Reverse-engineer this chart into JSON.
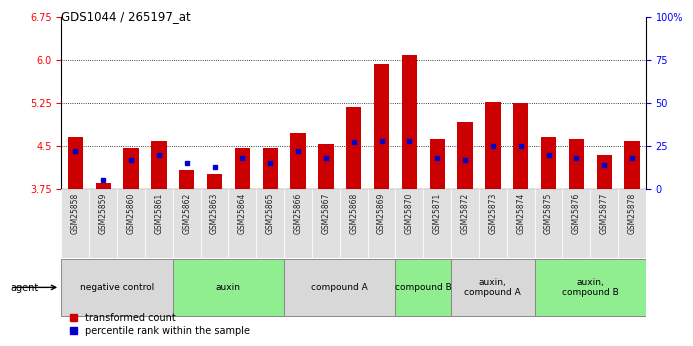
{
  "title": "GDS1044 / 265197_at",
  "samples": [
    "GSM25858",
    "GSM25859",
    "GSM25860",
    "GSM25861",
    "GSM25862",
    "GSM25863",
    "GSM25864",
    "GSM25865",
    "GSM25866",
    "GSM25867",
    "GSM25868",
    "GSM25869",
    "GSM25870",
    "GSM25871",
    "GSM25872",
    "GSM25873",
    "GSM25874",
    "GSM25875",
    "GSM25876",
    "GSM25877",
    "GSM25878"
  ],
  "transformed_counts": [
    4.65,
    3.85,
    4.47,
    4.58,
    4.08,
    4.02,
    4.47,
    4.47,
    4.73,
    4.53,
    5.18,
    5.93,
    6.08,
    4.62,
    4.92,
    5.27,
    5.25,
    4.65,
    4.62,
    4.35,
    4.58
  ],
  "percentile_ranks": [
    22,
    5,
    17,
    20,
    15,
    13,
    18,
    15,
    22,
    18,
    27,
    28,
    28,
    18,
    17,
    25,
    25,
    20,
    18,
    14,
    18
  ],
  "groups": [
    {
      "label": "negative control",
      "indices": [
        0,
        1,
        2,
        3
      ],
      "color": "#d8d8d8"
    },
    {
      "label": "auxin",
      "indices": [
        4,
        5,
        6,
        7
      ],
      "color": "#90ee90"
    },
    {
      "label": "compound A",
      "indices": [
        8,
        9,
        10,
        11
      ],
      "color": "#d8d8d8"
    },
    {
      "label": "compound B",
      "indices": [
        12,
        13
      ],
      "color": "#90ee90"
    },
    {
      "label": "auxin,\ncompound A",
      "indices": [
        14,
        15,
        16
      ],
      "color": "#d8d8d8"
    },
    {
      "label": "auxin,\ncompound B",
      "indices": [
        17,
        18,
        19,
        20
      ],
      "color": "#90ee90"
    }
  ],
  "ylim_left": [
    3.75,
    6.75
  ],
  "yticks_left": [
    3.75,
    4.5,
    5.25,
    6.0,
    6.75
  ],
  "ylim_right": [
    0,
    100
  ],
  "yticks_right": [
    0,
    25,
    50,
    75,
    100
  ],
  "yticklabels_right": [
    "0",
    "25",
    "50",
    "75",
    "100%"
  ],
  "bar_color": "#cc0000",
  "blue_color": "#0000cc",
  "bar_width": 0.55,
  "bg_color": "#ffffff",
  "plot_bg": "#ffffff",
  "legend_items": [
    "transformed count",
    "percentile rank within the sample"
  ],
  "agent_label": "agent"
}
